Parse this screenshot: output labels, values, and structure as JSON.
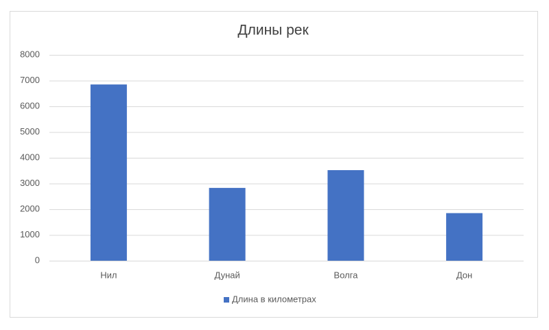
{
  "chart_data": {
    "type": "bar",
    "title": "Длины рек",
    "categories": [
      "Нил",
      "Дунай",
      "Волга",
      "Дон"
    ],
    "series": [
      {
        "name": "Длина в километрах",
        "color": "#4472c4",
        "values": [
          6850,
          2830,
          3520,
          1850
        ]
      }
    ],
    "ylim": [
      0,
      8000
    ],
    "yticks": [
      0,
      1000,
      2000,
      3000,
      4000,
      5000,
      6000,
      7000,
      8000
    ],
    "grid": true,
    "legend": "bottom"
  }
}
